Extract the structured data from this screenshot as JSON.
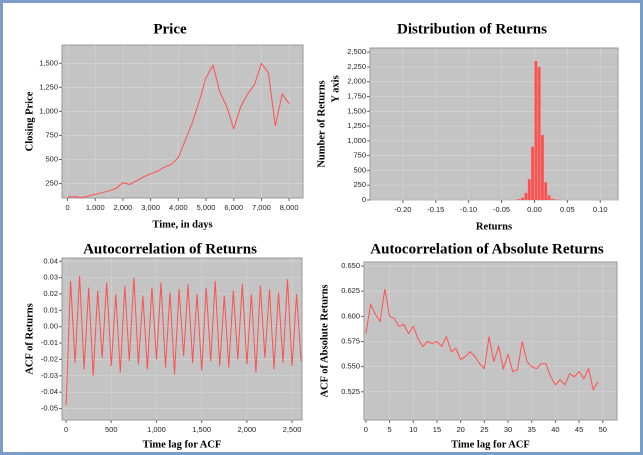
{
  "chart_data": [
    {
      "type": "line",
      "title": "Price",
      "xlabel": "Time, in days",
      "ylabel": "Closing Price",
      "color": "#ff5050",
      "grid": true,
      "x": [
        0,
        250,
        500,
        750,
        1000,
        1250,
        1500,
        1750,
        2000,
        2250,
        2500,
        2750,
        3000,
        3250,
        3500,
        3750,
        4000,
        4250,
        4500,
        4750,
        5000,
        5250,
        5500,
        5750,
        6000,
        6250,
        6500,
        6750,
        7000,
        7250,
        7500,
        7750,
        8000
      ],
      "values": [
        110,
        115,
        105,
        120,
        140,
        155,
        175,
        200,
        260,
        240,
        280,
        320,
        350,
        380,
        420,
        450,
        520,
        700,
        880,
        1100,
        1350,
        1480,
        1200,
        1050,
        820,
        1050,
        1180,
        1280,
        1500,
        1400,
        850,
        1180,
        1080
      ],
      "xlim": [
        -200,
        8500
      ],
      "ylim": [
        100,
        1690
      ],
      "xticks": [
        0,
        {
          "value": 1000,
          "label": "1,000"
        },
        {
          "value": 2000,
          "label": "2,000"
        },
        {
          "value": 3000,
          "label": "3,000"
        },
        {
          "value": 4000,
          "label": "4,000"
        },
        {
          "value": 5000,
          "label": "5,000"
        },
        {
          "value": 6000,
          "label": "6,000"
        },
        {
          "value": 7000,
          "label": "7,000"
        },
        {
          "value": 8000,
          "label": "8,000"
        }
      ],
      "yticks": [
        250,
        500,
        750,
        {
          "value": 1000,
          "label": "1,000"
        },
        {
          "value": 1250,
          "label": "1,250"
        },
        {
          "value": 1500,
          "label": "1,500"
        }
      ]
    },
    {
      "type": "histogram",
      "title": "Distribution of Returns",
      "xlabel": "Returns",
      "ylabel": "Number of Returns",
      "annotation": "Y axis",
      "color": "#ff5050",
      "grid": true,
      "bins": [
        -0.03,
        -0.025,
        -0.02,
        -0.015,
        -0.01,
        -0.005,
        0,
        0.005,
        0.01,
        0.015,
        0.02,
        0.025,
        0.03,
        0.035,
        0.04
      ],
      "values": [
        5,
        15,
        40,
        120,
        350,
        900,
        2350,
        2250,
        1100,
        300,
        80,
        20,
        8,
        3
      ],
      "xlim": [
        -0.25,
        0.127
      ],
      "ylim": [
        0,
        2570
      ],
      "xticks": [
        {
          "value": -0.2,
          "label": "-0.20"
        },
        {
          "value": -0.15,
          "label": "-0.15"
        },
        {
          "value": -0.1,
          "label": "-0.10"
        },
        {
          "value": -0.05,
          "label": "-0.05"
        },
        {
          "value": 0,
          "label": "0.00"
        },
        {
          "value": 0.05,
          "label": "0.05"
        },
        {
          "value": 0.1,
          "label": "0.10"
        }
      ],
      "yticks": [
        0,
        250,
        500,
        750,
        {
          "value": 1000,
          "label": "1,000"
        },
        {
          "value": 1250,
          "label": "1,250"
        },
        {
          "value": 1500,
          "label": "1,500"
        },
        {
          "value": 1750,
          "label": "1,750"
        },
        {
          "value": 2000,
          "label": "2,000"
        },
        {
          "value": 2250,
          "label": "2,250"
        },
        {
          "value": 2500,
          "label": "2,500"
        }
      ]
    },
    {
      "type": "line",
      "title": "Autocorrelation of Returns",
      "xlabel": "Time lag for ACF",
      "ylabel": "ACF of Returns",
      "color": "#ff5050",
      "grid": true,
      "x": [
        0,
        50,
        100,
        150,
        200,
        250,
        300,
        350,
        400,
        450,
        500,
        550,
        600,
        650,
        700,
        750,
        800,
        850,
        900,
        950,
        1000,
        1050,
        1100,
        1150,
        1200,
        1250,
        1300,
        1350,
        1400,
        1450,
        1500,
        1550,
        1600,
        1650,
        1700,
        1750,
        1800,
        1850,
        1900,
        1950,
        2000,
        2050,
        2100,
        2150,
        2200,
        2250,
        2300,
        2350,
        2400,
        2450,
        2500,
        2550,
        2600
      ],
      "values": [
        -0.048,
        0.028,
        -0.022,
        0.031,
        -0.026,
        0.024,
        -0.03,
        0.022,
        -0.019,
        0.027,
        -0.024,
        0.02,
        -0.028,
        0.025,
        -0.021,
        0.03,
        -0.023,
        0.019,
        -0.026,
        0.024,
        -0.02,
        0.027,
        -0.025,
        0.021,
        -0.029,
        0.023,
        -0.018,
        0.026,
        -0.022,
        0.02,
        -0.027,
        0.024,
        -0.021,
        0.028,
        -0.024,
        0.019,
        -0.025,
        0.022,
        -0.02,
        0.026,
        -0.023,
        0.02,
        -0.028,
        0.025,
        -0.019,
        0.023,
        -0.026,
        0.021,
        -0.022,
        0.029,
        -0.024,
        0.02,
        -0.021
      ],
      "xlim": [
        -45,
        2610
      ],
      "ylim": [
        -0.057,
        0.042
      ],
      "xticks": [
        0,
        500,
        {
          "value": 1000,
          "label": "1,000"
        },
        {
          "value": 1500,
          "label": "1,500"
        },
        {
          "value": 2000,
          "label": "2,000"
        },
        {
          "value": 2500,
          "label": "2,500"
        }
      ],
      "yticks": [
        -0.05,
        -0.04,
        -0.03,
        -0.02,
        -0.01,
        {
          "value": 0,
          "label": "0.00"
        },
        0.01,
        0.02,
        0.03,
        0.04
      ]
    },
    {
      "type": "line",
      "title": "Autocorrelation of Absolute Returns",
      "xlabel": "Time lag for ACF",
      "ylabel": "ACF of Absolute Returns",
      "color": "#ff5050",
      "grid": true,
      "x": [
        0,
        1,
        2,
        3,
        4,
        5,
        6,
        7,
        8,
        9,
        10,
        11,
        12,
        13,
        14,
        15,
        16,
        17,
        18,
        19,
        20,
        21,
        22,
        23,
        24,
        25,
        26,
        27,
        28,
        29,
        30,
        31,
        32,
        33,
        34,
        35,
        36,
        37,
        38,
        39,
        40,
        41,
        42,
        43,
        44,
        45,
        46,
        47,
        48,
        49
      ],
      "values": [
        0.583,
        0.612,
        0.602,
        0.595,
        0.627,
        0.6,
        0.598,
        0.59,
        0.592,
        0.583,
        0.59,
        0.578,
        0.57,
        0.575,
        0.573,
        0.575,
        0.57,
        0.58,
        0.565,
        0.568,
        0.557,
        0.56,
        0.565,
        0.56,
        0.553,
        0.548,
        0.58,
        0.555,
        0.57,
        0.548,
        0.562,
        0.545,
        0.547,
        0.575,
        0.555,
        0.55,
        0.548,
        0.553,
        0.553,
        0.54,
        0.532,
        0.537,
        0.532,
        0.543,
        0.54,
        0.545,
        0.538,
        0.548,
        0.527,
        0.535
      ],
      "xlim": [
        -0.4,
        53
      ],
      "ylim": [
        0.497,
        0.654
      ],
      "xticks": [
        0,
        5,
        10,
        15,
        20,
        25,
        30,
        35,
        40,
        45,
        50
      ],
      "yticks": [
        0.525,
        {
          "value": 0.55,
          "label": "0.550"
        },
        0.575,
        {
          "value": 0.6,
          "label": "0.600"
        },
        0.625,
        {
          "value": 0.65,
          "label": "0.650"
        }
      ]
    }
  ]
}
